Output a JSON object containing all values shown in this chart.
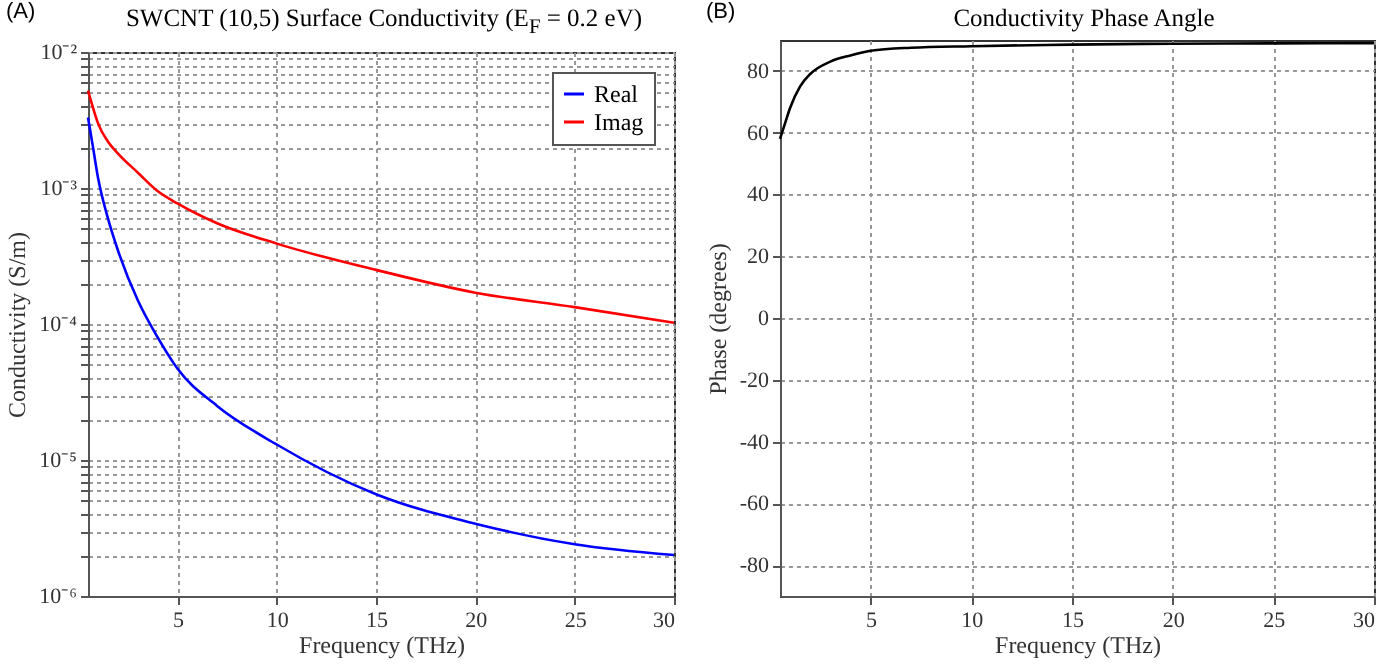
{
  "chart_data": [
    {
      "type": "line",
      "title": "SWCNT (10,5) Surface Conductivity (E$_{F}$ = 0.2 eV)",
      "xlabel": "Frequency (THz)",
      "ylabel": "Conductivity (S/m)",
      "annotations": [
        "(A)"
      ],
      "x": [
        0.5,
        0.75,
        1,
        1.5,
        2,
        3,
        4,
        5,
        7,
        10,
        15,
        20,
        25,
        30
      ],
      "series": [
        {
          "name": "Real",
          "color": "#0000ff",
          "values": [
            0.0033,
            0.002,
            0.0012,
            0.0006,
            0.00035,
            0.00015,
            8e-05,
            4.7e-05,
            2.5e-05,
            1.3e-05,
            5.6e-06,
            3.4e-06,
            2.4e-06,
            2e-06
          ]
        },
        {
          "name": "Imag",
          "color": "#ff0000",
          "values": [
            0.0052,
            0.0039,
            0.003,
            0.0022,
            0.0018,
            0.0013,
            0.00095,
            0.00077,
            0.00055,
            0.00039,
            0.00025,
            0.00017,
            0.000133,
            0.000102
          ]
        }
      ],
      "xlim": [
        0.5,
        30
      ],
      "xticks": [
        5,
        10,
        15,
        20,
        25,
        30
      ],
      "ylim": [
        1e-06,
        0.01
      ],
      "yticks": [
        {
          "value": 1e-06,
          "label": "10⁻⁶"
        },
        {
          "value": 2e-06,
          "label": null
        },
        {
          "value": 3e-06,
          "label": null
        },
        {
          "value": 4e-06,
          "label": null
        },
        {
          "value": 5e-06,
          "label": null
        },
        {
          "value": 6e-06,
          "label": null
        },
        {
          "value": 7e-06,
          "label": null
        },
        {
          "value": 8e-06,
          "label": null
        },
        {
          "value": 9e-06,
          "label": null
        },
        {
          "value": 1e-05,
          "label": "10⁻⁵"
        },
        {
          "value": 2e-05,
          "label": null
        },
        {
          "value": 3e-05,
          "label": null
        },
        {
          "value": 4e-05,
          "label": null
        },
        {
          "value": 5e-05,
          "label": null
        },
        {
          "value": 6e-05,
          "label": null
        },
        {
          "value": 7e-05,
          "label": null
        },
        {
          "value": 8e-05,
          "label": null
        },
        {
          "value": 9e-05,
          "label": null
        },
        {
          "value": 0.0001,
          "label": "10⁻⁴"
        },
        {
          "value": 0.0002,
          "label": null
        },
        {
          "value": 0.0003,
          "label": null
        },
        {
          "value": 0.0004,
          "label": null
        },
        {
          "value": 0.0005,
          "label": null
        },
        {
          "value": 0.0006,
          "label": null
        },
        {
          "value": 0.0007,
          "label": null
        },
        {
          "value": 0.0008,
          "label": null
        },
        {
          "value": 0.0009,
          "label": null
        },
        {
          "value": 0.001,
          "label": "10⁻³"
        },
        {
          "value": 0.002,
          "label": null
        },
        {
          "value": 0.003,
          "label": null
        },
        {
          "value": 0.004,
          "label": null
        },
        {
          "value": 0.005,
          "label": null
        },
        {
          "value": 0.006,
          "label": null
        },
        {
          "value": 0.007,
          "label": null
        },
        {
          "value": 0.008,
          "label": null
        },
        {
          "value": 0.009,
          "label": null
        },
        {
          "value": 0.01,
          "label": "10⁻²"
        }
      ],
      "log": "y",
      "grid": true,
      "legend": "top right"
    },
    {
      "type": "line",
      "title": "Conductivity Phase Angle",
      "xlabel": "Frequency (THz)",
      "ylabel": "Phase (degrees)",
      "annotations": [
        "(B)"
      ],
      "x": [
        0.5,
        0.75,
        1,
        1.5,
        2,
        3,
        4,
        5,
        7,
        10,
        15,
        20,
        25,
        30
      ],
      "series": [
        {
          "color": "#000000",
          "values": [
            58,
            63,
            68,
            75,
            79,
            83,
            85,
            86.5,
            87.5,
            88,
            88.5,
            88.8,
            88.9,
            89
          ]
        }
      ],
      "xlim": [
        0.5,
        30
      ],
      "xticks": [
        5,
        10,
        15,
        20,
        25,
        30
      ],
      "ylim": [
        -90,
        90
      ],
      "yticks": [
        -80,
        -60,
        -40,
        -20,
        0,
        20,
        40,
        60,
        80
      ],
      "grid": true
    }
  ]
}
